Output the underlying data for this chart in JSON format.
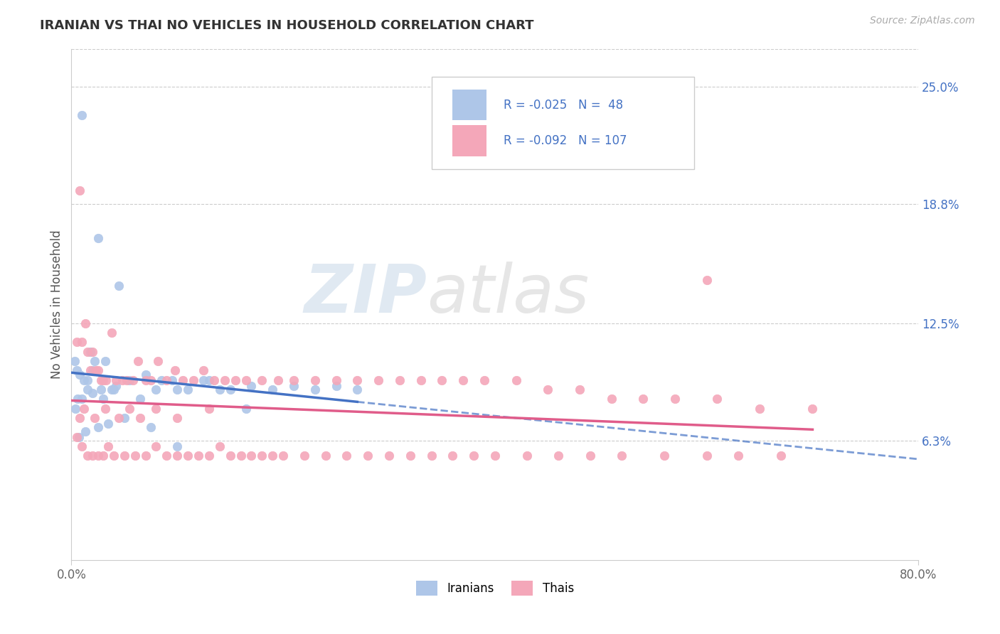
{
  "title": "IRANIAN VS THAI NO VEHICLES IN HOUSEHOLD CORRELATION CHART",
  "source": "Source: ZipAtlas.com",
  "xlim": [
    0.0,
    80.0
  ],
  "ylim": [
    0.0,
    27.0
  ],
  "ylabel_tick_vals": [
    6.3,
    12.5,
    18.8,
    25.0
  ],
  "ylabel_ticks": [
    "6.3%",
    "12.5%",
    "18.8%",
    "25.0%"
  ],
  "legend_text1": "R = -0.025   N =  48",
  "legend_text2": "R = -0.092   N = 107",
  "iranian_color": "#aec6e8",
  "thai_color": "#f4a7b9",
  "trend_iranian_color": "#4472c4",
  "trend_thai_color": "#e05c8a",
  "iranians_label": "Iranians",
  "thais_label": "Thais",
  "iranian_x": [
    1.0,
    2.5,
    4.5,
    0.3,
    0.5,
    0.8,
    1.2,
    1.5,
    1.8,
    2.0,
    2.2,
    2.8,
    3.2,
    3.8,
    4.2,
    0.4,
    0.6,
    1.0,
    1.5,
    2.0,
    3.0,
    4.0,
    5.5,
    7.0,
    8.0,
    9.5,
    11.0,
    13.0,
    15.0,
    17.0,
    19.0,
    21.0,
    23.0,
    25.0,
    27.0,
    6.5,
    8.5,
    10.0,
    12.5,
    14.0,
    16.5,
    0.7,
    1.3,
    2.5,
    3.5,
    5.0,
    7.5,
    10.0
  ],
  "iranian_y": [
    23.5,
    17.0,
    14.5,
    10.5,
    10.0,
    9.8,
    9.5,
    9.5,
    11.0,
    10.0,
    10.5,
    9.0,
    10.5,
    9.0,
    9.2,
    8.0,
    8.5,
    8.5,
    9.0,
    8.8,
    8.5,
    9.0,
    9.5,
    9.8,
    9.0,
    9.5,
    9.0,
    9.5,
    9.0,
    9.2,
    9.0,
    9.2,
    9.0,
    9.2,
    9.0,
    8.5,
    9.5,
    9.0,
    9.5,
    9.0,
    8.0,
    6.5,
    6.8,
    7.0,
    7.2,
    7.5,
    7.0,
    6.0
  ],
  "thai_x": [
    0.5,
    0.8,
    1.0,
    1.3,
    1.5,
    1.8,
    2.0,
    2.3,
    2.5,
    2.8,
    3.0,
    3.3,
    3.8,
    4.2,
    4.8,
    5.2,
    5.8,
    6.3,
    7.0,
    7.5,
    8.2,
    9.0,
    9.8,
    10.5,
    11.5,
    12.5,
    13.5,
    14.5,
    15.5,
    16.5,
    18.0,
    19.5,
    21.0,
    23.0,
    25.0,
    27.0,
    29.0,
    31.0,
    33.0,
    35.0,
    37.0,
    39.0,
    42.0,
    45.0,
    48.0,
    51.0,
    54.0,
    57.0,
    61.0,
    65.0,
    70.0,
    0.5,
    1.0,
    1.5,
    2.0,
    2.5,
    3.0,
    3.5,
    4.0,
    5.0,
    6.0,
    7.0,
    8.0,
    9.0,
    10.0,
    11.0,
    12.0,
    13.0,
    14.0,
    15.0,
    16.0,
    17.0,
    18.0,
    19.0,
    20.0,
    22.0,
    24.0,
    26.0,
    28.0,
    30.0,
    32.0,
    34.0,
    36.0,
    38.0,
    40.0,
    43.0,
    46.0,
    49.0,
    52.0,
    56.0,
    60.0,
    63.0,
    67.0,
    0.8,
    1.2,
    2.2,
    3.2,
    4.5,
    5.5,
    6.5,
    8.0,
    10.0,
    13.0,
    60.0
  ],
  "thai_y": [
    11.5,
    19.5,
    11.5,
    12.5,
    11.0,
    10.0,
    11.0,
    10.0,
    10.0,
    9.5,
    9.5,
    9.5,
    12.0,
    9.5,
    9.5,
    9.5,
    9.5,
    10.5,
    9.5,
    9.5,
    10.5,
    9.5,
    10.0,
    9.5,
    9.5,
    10.0,
    9.5,
    9.5,
    9.5,
    9.5,
    9.5,
    9.5,
    9.5,
    9.5,
    9.5,
    9.5,
    9.5,
    9.5,
    9.5,
    9.5,
    9.5,
    9.5,
    9.5,
    9.0,
    9.0,
    8.5,
    8.5,
    8.5,
    8.5,
    8.0,
    8.0,
    6.5,
    6.0,
    5.5,
    5.5,
    5.5,
    5.5,
    6.0,
    5.5,
    5.5,
    5.5,
    5.5,
    6.0,
    5.5,
    5.5,
    5.5,
    5.5,
    5.5,
    6.0,
    5.5,
    5.5,
    5.5,
    5.5,
    5.5,
    5.5,
    5.5,
    5.5,
    5.5,
    5.5,
    5.5,
    5.5,
    5.5,
    5.5,
    5.5,
    5.5,
    5.5,
    5.5,
    5.5,
    5.5,
    5.5,
    5.5,
    5.5,
    5.5,
    7.5,
    8.0,
    7.5,
    8.0,
    7.5,
    8.0,
    7.5,
    8.0,
    7.5,
    8.0,
    14.8
  ]
}
